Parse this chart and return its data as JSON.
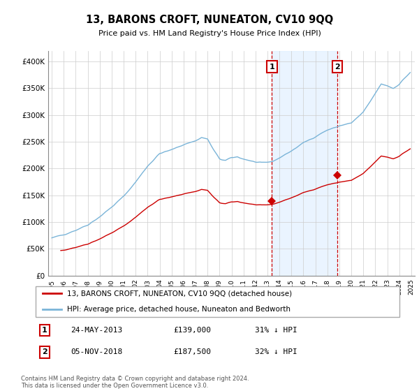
{
  "title": "13, BARONS CROFT, NUNEATON, CV10 9QQ",
  "subtitle": "Price paid vs. HM Land Registry's House Price Index (HPI)",
  "footer": "Contains HM Land Registry data © Crown copyright and database right 2024.\nThis data is licensed under the Open Government Licence v3.0.",
  "legend_line1": "13, BARONS CROFT, NUNEATON, CV10 9QQ (detached house)",
  "legend_line2": "HPI: Average price, detached house, Nuneaton and Bedworth",
  "annotation1_date": "24-MAY-2013",
  "annotation1_price": "£139,000",
  "annotation1_hpi": "31% ↓ HPI",
  "annotation2_date": "05-NOV-2018",
  "annotation2_price": "£187,500",
  "annotation2_hpi": "32% ↓ HPI",
  "marker1_x": 2013.38,
  "marker1_y": 139000,
  "marker2_x": 2018.84,
  "marker2_y": 187500,
  "vline1_x": 2013.38,
  "vline2_x": 2018.84,
  "hpi_color": "#7ab4d8",
  "price_color": "#cc0000",
  "vline_color": "#cc0000",
  "shade_color": "#ddeeff",
  "ylim": [
    0,
    420000
  ],
  "yticks": [
    0,
    50000,
    100000,
    150000,
    200000,
    250000,
    300000,
    350000,
    400000
  ],
  "ytick_labels": [
    "£0",
    "£50K",
    "£100K",
    "£150K",
    "£200K",
    "£250K",
    "£300K",
    "£350K",
    "£400K"
  ],
  "xlim_start": 1994.7,
  "xlim_end": 2025.3,
  "sale1_year": 1995.75,
  "sale1_price": 47000,
  "sale2_year": 2013.38,
  "sale2_price": 139000,
  "sale3_year": 2018.84,
  "sale3_price": 187500
}
